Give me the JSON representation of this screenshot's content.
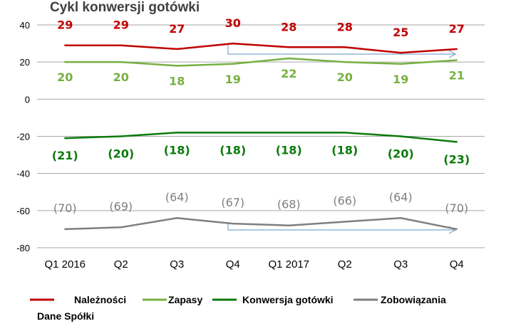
{
  "chart_data": {
    "type": "line",
    "title": "Cykl konwersji gotówki",
    "categories": [
      "Q1 2016",
      "Q2",
      "Q3",
      "Q4",
      "Q1 2017",
      "Q2",
      "Q3",
      "Q4"
    ],
    "ylim": [
      -80,
      40
    ],
    "yticks": [
      "40",
      "20",
      "0",
      "-20",
      "-40",
      "-60",
      "-80"
    ],
    "grid": true,
    "legend_position": "bottom",
    "series": [
      {
        "name": "Należności",
        "color": "#c00000",
        "values": [
          29,
          29,
          27,
          30,
          28,
          28,
          25,
          27
        ],
        "labels": [
          "29",
          "29",
          "27",
          "30",
          "28",
          "28",
          "25",
          "27"
        ]
      },
      {
        "name": "Zapasy",
        "color": "#77b041",
        "values": [
          20,
          20,
          18,
          19,
          22,
          20,
          19,
          21
        ],
        "labels": [
          "20",
          "20",
          "18",
          "19",
          "22",
          "20",
          "19",
          "21"
        ]
      },
      {
        "name": "Konwersja gotówki",
        "color": "#0b7a0b",
        "values": [
          -21,
          -20,
          -18,
          -18,
          -18,
          -18,
          -20,
          -23
        ],
        "labels": [
          "(21)",
          "(20)",
          "(18)",
          "(18)",
          "(18)",
          "(18)",
          "(20)",
          "(23)"
        ]
      },
      {
        "name": "Zobowiązania",
        "color": "#7f7f7f",
        "values": [
          -70,
          -69,
          -64,
          -67,
          -68,
          -66,
          -64,
          -70
        ],
        "labels": [
          "(70)",
          "(69)",
          "(64)",
          "(67)",
          "(68)",
          "(66)",
          "(64)",
          "(70)"
        ]
      }
    ]
  },
  "source_note": "Dane Spółki"
}
